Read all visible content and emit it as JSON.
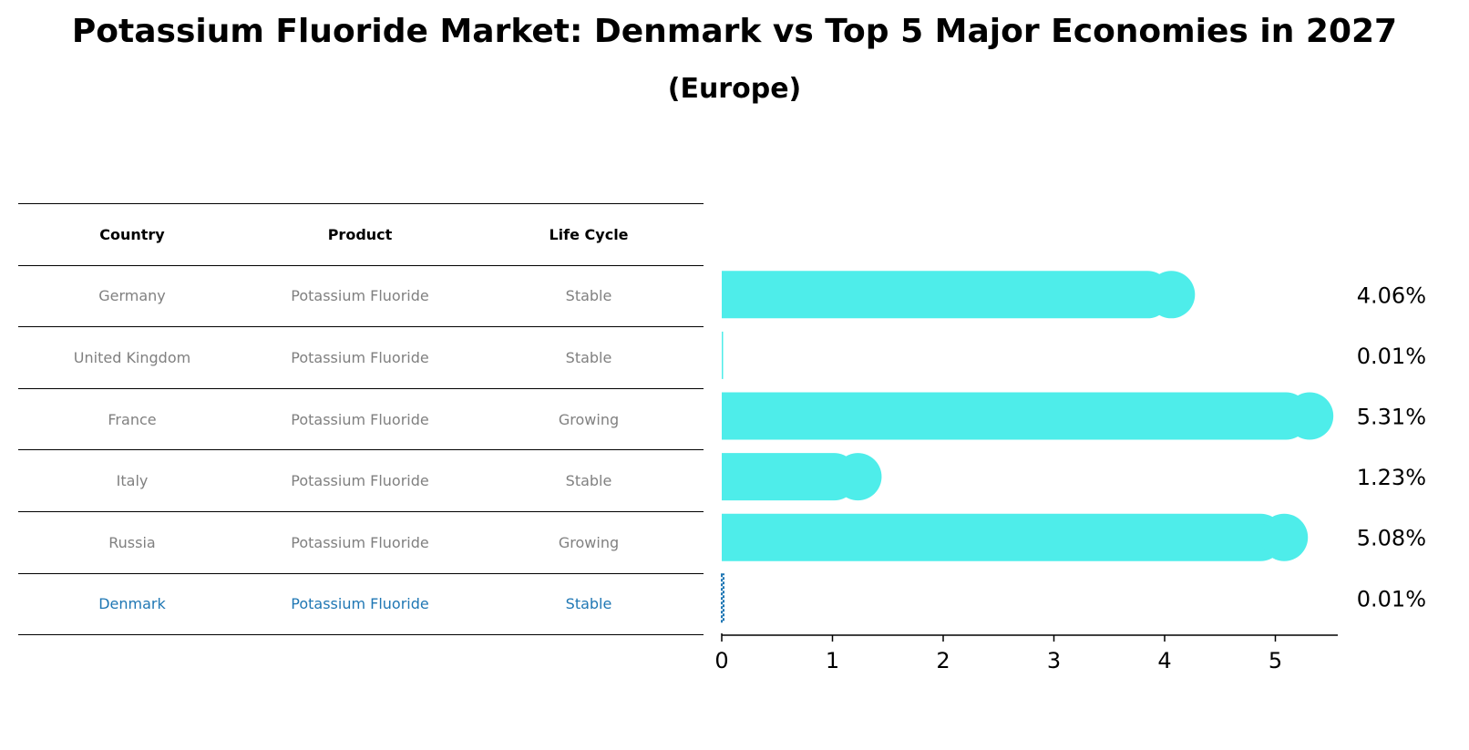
{
  "title": "Potassium Fluoride Market: Denmark vs Top 5 Major Economies in 2027",
  "subtitle": "(Europe)",
  "table": {
    "headers": [
      "Country",
      "Product",
      "Life Cycle"
    ],
    "rows": [
      {
        "country": "Germany",
        "product": "Potassium Fluoride",
        "life_cycle": "Stable"
      },
      {
        "country": "United Kingdom",
        "product": "Potassium Fluoride",
        "life_cycle": "Stable"
      },
      {
        "country": "France",
        "product": "Potassium Fluoride",
        "life_cycle": "Growing"
      },
      {
        "country": "Italy",
        "product": "Potassium Fluoride",
        "life_cycle": "Stable"
      },
      {
        "country": "Russia",
        "product": "Potassium Fluoride",
        "life_cycle": "Growing"
      },
      {
        "country": "Denmark",
        "product": "Potassium Fluoride",
        "life_cycle": "Stable"
      }
    ]
  },
  "colors": {
    "bar": "#4EEDEA",
    "highlight": "#1f77b4",
    "muted_text": "#808080"
  },
  "chart_data": {
    "type": "bar",
    "orientation": "horizontal",
    "categories": [
      "Germany",
      "United Kingdom",
      "France",
      "Italy",
      "Russia",
      "Denmark"
    ],
    "values": [
      4.06,
      0.01,
      5.31,
      1.23,
      5.08,
      0.01
    ],
    "value_labels": [
      "4.06%",
      "0.01%",
      "5.31%",
      "1.23%",
      "5.08%",
      "0.01%"
    ],
    "xlim": [
      0,
      5.6
    ],
    "xticks": [
      "0",
      "1",
      "2",
      "3",
      "4",
      "5"
    ],
    "highlight_category": "Denmark",
    "grid": false
  }
}
